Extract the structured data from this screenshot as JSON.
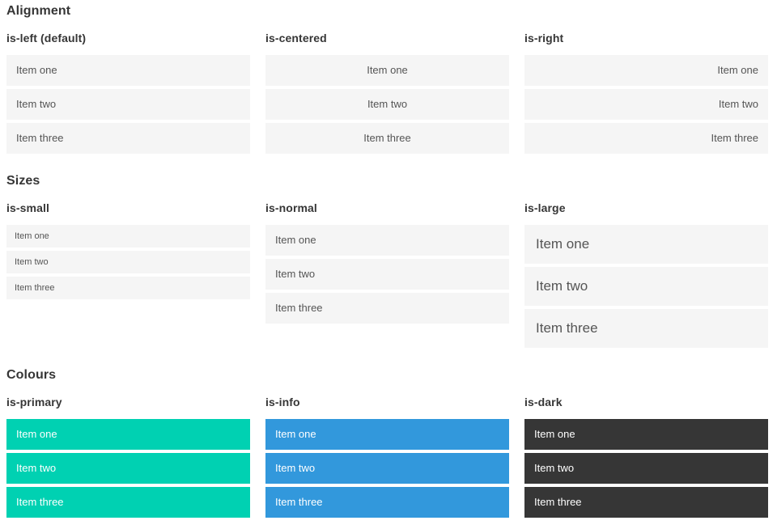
{
  "colors": {
    "primary": "#00d1b2",
    "info": "#3298dc",
    "dark": "#363636",
    "item-bg": "#f5f5f5",
    "heading": "#363636",
    "text": "#555555"
  },
  "sections": [
    {
      "title": "Alignment",
      "columns": [
        {
          "subtitle": "is-left (default)",
          "items": [
            "Item one",
            "Item two",
            "Item three"
          ]
        },
        {
          "subtitle": "is-centered",
          "items": [
            "Item one",
            "Item two",
            "Item three"
          ]
        },
        {
          "subtitle": "is-right",
          "items": [
            "Item one",
            "Item two",
            "Item three"
          ]
        }
      ]
    },
    {
      "title": "Sizes",
      "columns": [
        {
          "subtitle": "is-small",
          "items": [
            "Item one",
            "Item two",
            "Item three"
          ]
        },
        {
          "subtitle": "is-normal",
          "items": [
            "Item one",
            "Item two",
            "Item three"
          ]
        },
        {
          "subtitle": "is-large",
          "items": [
            "Item one",
            "Item two",
            "Item three"
          ]
        }
      ]
    },
    {
      "title": "Colours",
      "columns": [
        {
          "subtitle": "is-primary",
          "items": [
            "Item one",
            "Item two",
            "Item three"
          ]
        },
        {
          "subtitle": "is-info",
          "items": [
            "Item one",
            "Item two",
            "Item three"
          ]
        },
        {
          "subtitle": "is-dark",
          "items": [
            "Item one",
            "Item two",
            "Item three"
          ]
        }
      ]
    }
  ]
}
